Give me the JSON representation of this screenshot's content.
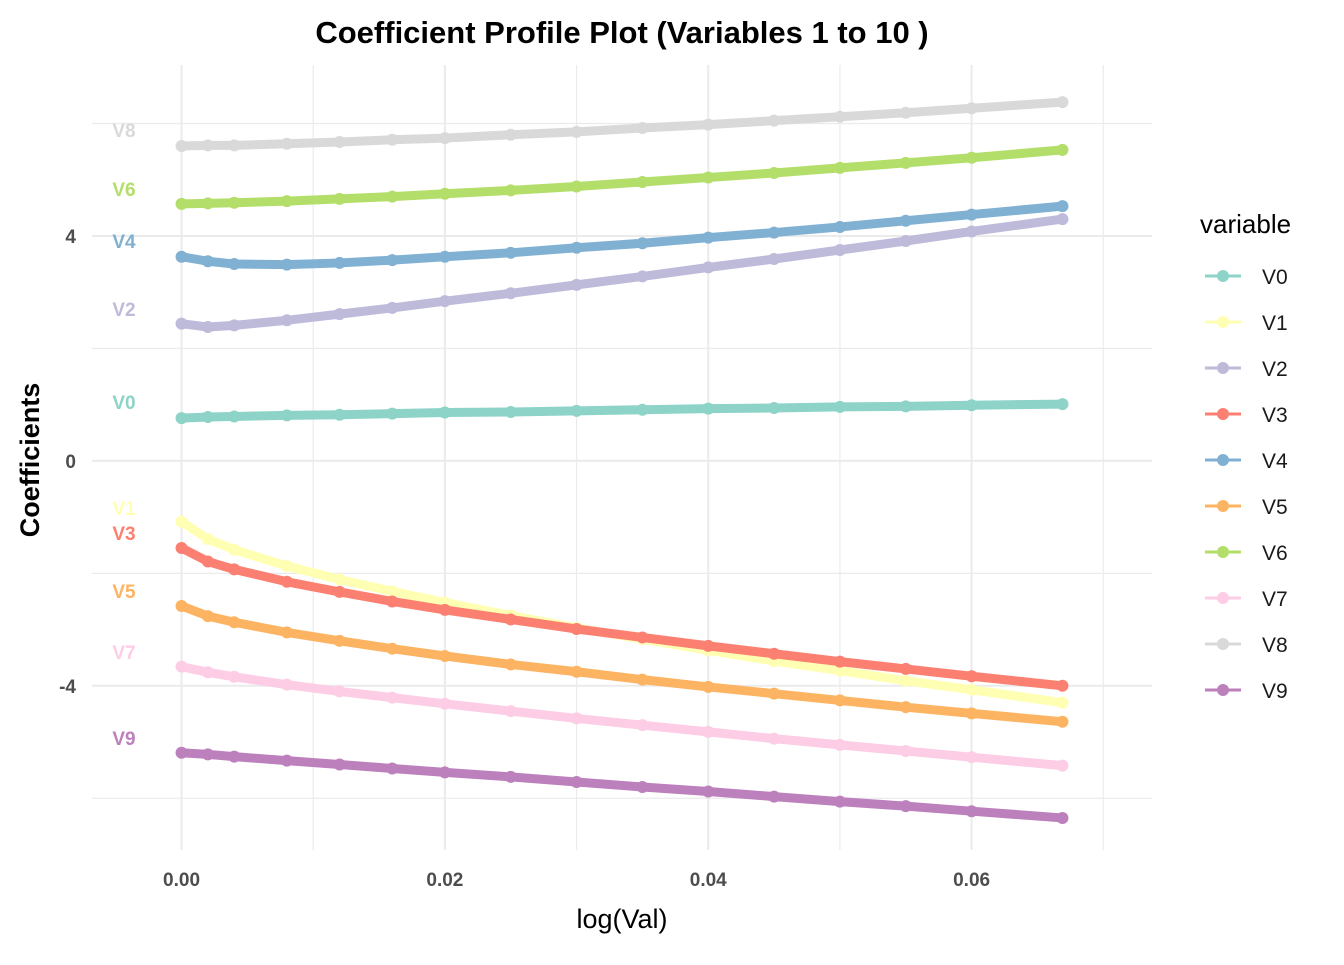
{
  "chart_data": {
    "type": "line",
    "title": "Coefficient Profile Plot (Variables 1 to 10 )",
    "xlabel": "log(Val)",
    "ylabel": "Coefficients",
    "xlim": [
      -0.0068,
      0.0737
    ],
    "ylim": [
      -6.92,
      7.04
    ],
    "x_ticks": [
      0.0,
      0.02,
      0.04,
      0.06
    ],
    "x_tick_labels": [
      "0.00",
      "0.02",
      "0.04",
      "0.06"
    ],
    "y_ticks": [
      4,
      0,
      -4
    ],
    "y_tick_labels": [
      "4",
      "0",
      "-4"
    ],
    "grid": true,
    "legend": {
      "title": "variable",
      "position": "right"
    },
    "x": [
      0,
      0.002,
      0.004,
      0.008,
      0.012,
      0.016,
      0.02,
      0.025,
      0.03,
      0.035,
      0.04,
      0.045,
      0.05,
      0.055,
      0.06,
      0.0669
    ],
    "series": [
      {
        "name": "V0",
        "color": "#8DD3C7",
        "values": [
          0.76,
          0.78,
          0.79,
          0.81,
          0.82,
          0.84,
          0.86,
          0.87,
          0.89,
          0.91,
          0.93,
          0.94,
          0.96,
          0.97,
          0.99,
          1.01
        ]
      },
      {
        "name": "V1",
        "color": "#FFFFB3",
        "values": [
          -1.08,
          -1.39,
          -1.58,
          -1.87,
          -2.11,
          -2.32,
          -2.52,
          -2.75,
          -2.97,
          -3.17,
          -3.37,
          -3.56,
          -3.73,
          -3.91,
          -4.07,
          -4.3
        ]
      },
      {
        "name": "V2",
        "color": "#BEBADA",
        "values": [
          2.44,
          2.38,
          2.41,
          2.5,
          2.61,
          2.72,
          2.84,
          2.98,
          3.13,
          3.28,
          3.44,
          3.59,
          3.75,
          3.91,
          4.08,
          4.3
        ]
      },
      {
        "name": "V3",
        "color": "#FB8072",
        "values": [
          -1.55,
          -1.79,
          -1.93,
          -2.15,
          -2.33,
          -2.5,
          -2.65,
          -2.82,
          -2.99,
          -3.14,
          -3.29,
          -3.43,
          -3.57,
          -3.7,
          -3.83,
          -4.0
        ]
      },
      {
        "name": "V4",
        "color": "#80B1D3",
        "values": [
          3.63,
          3.55,
          3.5,
          3.49,
          3.52,
          3.57,
          3.63,
          3.7,
          3.79,
          3.87,
          3.97,
          4.06,
          4.16,
          4.27,
          4.38,
          4.53
        ]
      },
      {
        "name": "V5",
        "color": "#FDB462",
        "values": [
          -2.58,
          -2.76,
          -2.87,
          -3.05,
          -3.2,
          -3.34,
          -3.47,
          -3.62,
          -3.75,
          -3.89,
          -4.02,
          -4.14,
          -4.26,
          -4.38,
          -4.49,
          -4.64
        ]
      },
      {
        "name": "V6",
        "color": "#B3DE69",
        "values": [
          4.57,
          4.58,
          4.59,
          4.62,
          4.66,
          4.7,
          4.75,
          4.81,
          4.88,
          4.96,
          5.04,
          5.12,
          5.21,
          5.3,
          5.39,
          5.53
        ]
      },
      {
        "name": "V7",
        "color": "#FCCDE5",
        "values": [
          -3.66,
          -3.76,
          -3.84,
          -3.98,
          -4.1,
          -4.21,
          -4.32,
          -4.45,
          -4.58,
          -4.7,
          -4.82,
          -4.94,
          -5.05,
          -5.16,
          -5.27,
          -5.42
        ]
      },
      {
        "name": "V8",
        "color": "#D9D9D9",
        "values": [
          5.6,
          5.61,
          5.61,
          5.64,
          5.67,
          5.71,
          5.74,
          5.8,
          5.85,
          5.92,
          5.98,
          6.05,
          6.12,
          6.19,
          6.27,
          6.38
        ]
      },
      {
        "name": "V9",
        "color": "#BC80BD",
        "values": [
          -5.19,
          -5.22,
          -5.26,
          -5.33,
          -5.4,
          -5.47,
          -5.54,
          -5.62,
          -5.71,
          -5.8,
          -5.88,
          -5.97,
          -6.06,
          -6.14,
          -6.23,
          -6.35
        ]
      }
    ],
    "annotations": [
      "V8",
      "V6",
      "V4",
      "V2",
      "V0",
      "V1",
      "V3",
      "V5",
      "V7",
      "V9"
    ]
  }
}
